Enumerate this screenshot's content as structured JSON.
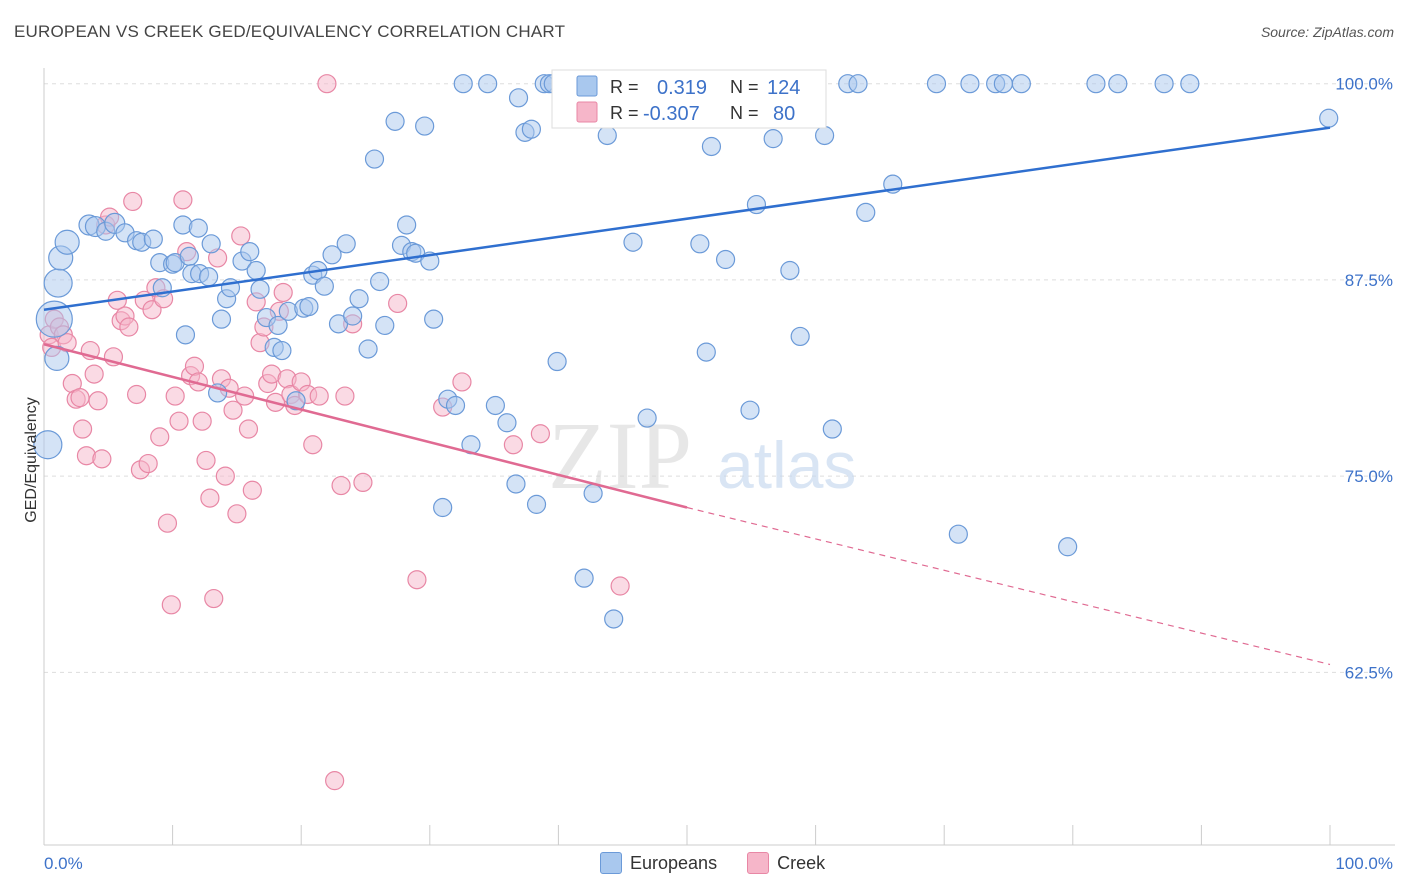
{
  "title": "EUROPEAN VS CREEK GED/EQUIVALENCY CORRELATION CHART",
  "source": "Source: ZipAtlas.com",
  "watermark": {
    "zip": "ZIP",
    "atlas": "atlas"
  },
  "legend": {
    "europeans": {
      "r_label": "R =",
      "r_value": "0.319",
      "n_label": "N =",
      "n_value": "124"
    },
    "creek": {
      "r_label": "R =",
      "r_value": "-0.307",
      "n_label": "N =",
      "n_value": "80"
    }
  },
  "bottom_legend": [
    "Europeans",
    "Creek"
  ],
  "colors": {
    "europeans_fill": "#a9c8ee",
    "europeans_stroke": "#6b9ad8",
    "europeans_line": "#2f6fcf",
    "creek_fill": "#f6b6c9",
    "creek_stroke": "#e887a5",
    "creek_line": "#e06a92",
    "tick": "#3d72c9",
    "grid": "#dddddd"
  },
  "chart_data": {
    "type": "scatter",
    "title": "EUROPEAN VS CREEK GED/EQUIVALENCY CORRELATION CHART",
    "xlabel": "",
    "ylabel": "GED/Equivalency",
    "xlim": [
      0,
      100
    ],
    "ylim": [
      51.5,
      101
    ],
    "x_tick_labels": [
      "0.0%",
      "100.0%"
    ],
    "y_ticks": [
      62.5,
      75.0,
      87.5,
      100.0
    ],
    "y_tick_labels": [
      "62.5%",
      "75.0%",
      "87.5%",
      "100.0%"
    ],
    "grid": true,
    "series": [
      {
        "name": "Europeans",
        "trend": {
          "x": [
            0,
            100
          ],
          "y": [
            85.6,
            97.2
          ],
          "style": "solid"
        },
        "points": [
          [
            0.3,
            77.0,
            14
          ],
          [
            0.8,
            85.0,
            18
          ],
          [
            1.0,
            82.5,
            12
          ],
          [
            1.1,
            87.3,
            14
          ],
          [
            1.3,
            88.9,
            12
          ],
          [
            1.8,
            89.9,
            12
          ],
          [
            3.5,
            91.0,
            10
          ],
          [
            4.0,
            90.9,
            10
          ],
          [
            4.8,
            90.6,
            9
          ],
          [
            5.5,
            91.1,
            10
          ],
          [
            6.3,
            90.5,
            9
          ],
          [
            7.2,
            90.0,
            9
          ],
          [
            7.6,
            89.9,
            9
          ],
          [
            8.5,
            90.1,
            9
          ],
          [
            9.0,
            88.6,
            9
          ],
          [
            9.2,
            87.0,
            9
          ],
          [
            10.0,
            88.5,
            9
          ],
          [
            10.2,
            88.6,
            9
          ],
          [
            10.8,
            91.0,
            9
          ],
          [
            11.3,
            89.0,
            9
          ],
          [
            11.0,
            84.0,
            9
          ],
          [
            11.5,
            87.9,
            9
          ],
          [
            12.1,
            87.9,
            9
          ],
          [
            12.0,
            90.8,
            9
          ],
          [
            12.8,
            87.7,
            9
          ],
          [
            13.0,
            89.8,
            9
          ],
          [
            13.5,
            80.3,
            9
          ],
          [
            13.8,
            85.0,
            9
          ],
          [
            14.2,
            86.3,
            9
          ],
          [
            14.5,
            87.0,
            9
          ],
          [
            15.4,
            88.7,
            9
          ],
          [
            16.0,
            89.3,
            9
          ],
          [
            16.5,
            88.1,
            9
          ],
          [
            16.8,
            86.9,
            9
          ],
          [
            17.3,
            85.1,
            9
          ],
          [
            17.9,
            83.2,
            9
          ],
          [
            18.5,
            83.0,
            9
          ],
          [
            18.2,
            84.6,
            9
          ],
          [
            19.0,
            85.5,
            9
          ],
          [
            19.6,
            79.8,
            9
          ],
          [
            20.2,
            85.7,
            9
          ],
          [
            20.6,
            85.8,
            9
          ],
          [
            20.9,
            87.8,
            9
          ],
          [
            21.3,
            88.1,
            9
          ],
          [
            21.8,
            87.1,
            9
          ],
          [
            22.4,
            89.1,
            9
          ],
          [
            22.9,
            84.7,
            9
          ],
          [
            23.5,
            89.8,
            9
          ],
          [
            24.0,
            85.2,
            9
          ],
          [
            24.5,
            86.3,
            9
          ],
          [
            25.2,
            83.1,
            9
          ],
          [
            25.7,
            95.2,
            9
          ],
          [
            26.1,
            87.4,
            9
          ],
          [
            26.5,
            84.6,
            9
          ],
          [
            27.3,
            97.6,
            9
          ],
          [
            27.8,
            89.7,
            9
          ],
          [
            28.2,
            91.0,
            9
          ],
          [
            28.6,
            89.3,
            9
          ],
          [
            28.9,
            89.2,
            9
          ],
          [
            29.6,
            97.3,
            9
          ],
          [
            30.0,
            88.7,
            9
          ],
          [
            30.3,
            85.0,
            9
          ],
          [
            31.0,
            73.0,
            9
          ],
          [
            31.4,
            79.9,
            9
          ],
          [
            32.0,
            79.5,
            9
          ],
          [
            32.6,
            100.0,
            9
          ],
          [
            33.2,
            77.0,
            9
          ],
          [
            34.5,
            100.0,
            9
          ],
          [
            35.1,
            79.5,
            9
          ],
          [
            36.0,
            78.4,
            9
          ],
          [
            36.7,
            74.5,
            9
          ],
          [
            36.9,
            99.1,
            9
          ],
          [
            37.4,
            96.9,
            9
          ],
          [
            37.9,
            97.1,
            9
          ],
          [
            38.3,
            73.2,
            9
          ],
          [
            38.9,
            100.0,
            9
          ],
          [
            39.3,
            100.0,
            9
          ],
          [
            39.6,
            100.0,
            9
          ],
          [
            39.9,
            82.3,
            9
          ],
          [
            40.6,
            100.0,
            9
          ],
          [
            41.0,
            100.0,
            9
          ],
          [
            41.5,
            100.0,
            9
          ],
          [
            42.0,
            68.5,
            9
          ],
          [
            42.7,
            73.9,
            9
          ],
          [
            43.5,
            100.0,
            9
          ],
          [
            43.8,
            96.7,
            9
          ],
          [
            44.3,
            65.9,
            9
          ],
          [
            45.0,
            100.0,
            9
          ],
          [
            45.8,
            89.9,
            9
          ],
          [
            46.4,
            100.0,
            9
          ],
          [
            46.9,
            78.7,
            9
          ],
          [
            47.5,
            100.0,
            9
          ],
          [
            48.0,
            98.4,
            9
          ],
          [
            49.2,
            100.0,
            9
          ],
          [
            50.4,
            100.0,
            9
          ],
          [
            51.0,
            89.8,
            9
          ],
          [
            51.5,
            82.9,
            9
          ],
          [
            51.9,
            96.0,
            9
          ],
          [
            52.5,
            100.0,
            9
          ],
          [
            53.0,
            88.8,
            9
          ],
          [
            54.2,
            100.0,
            9
          ],
          [
            54.9,
            79.2,
            9
          ],
          [
            55.4,
            92.3,
            9
          ],
          [
            56.0,
            100.0,
            9
          ],
          [
            56.7,
            96.5,
            9
          ],
          [
            57.3,
            100.0,
            9
          ],
          [
            58.0,
            88.1,
            9
          ],
          [
            58.8,
            83.9,
            9
          ],
          [
            60.0,
            100.0,
            9
          ],
          [
            60.7,
            96.7,
            9
          ],
          [
            61.3,
            78.0,
            9
          ],
          [
            62.5,
            100.0,
            9
          ],
          [
            63.3,
            100.0,
            9
          ],
          [
            63.9,
            91.8,
            9
          ],
          [
            66.0,
            93.6,
            9
          ],
          [
            69.4,
            100.0,
            9
          ],
          [
            71.1,
            71.3,
            9
          ],
          [
            72.0,
            100.0,
            9
          ],
          [
            74.0,
            100.0,
            9
          ],
          [
            74.6,
            100.0,
            9
          ],
          [
            76.0,
            100.0,
            9
          ],
          [
            79.6,
            70.5,
            9
          ],
          [
            81.8,
            100.0,
            9
          ],
          [
            83.5,
            100.0,
            9
          ],
          [
            87.1,
            100.0,
            9
          ],
          [
            89.1,
            100.0,
            9
          ],
          [
            99.9,
            97.8,
            9
          ]
        ]
      },
      {
        "name": "Creek",
        "trend": {
          "x": [
            0,
            50,
            100
          ],
          "y": [
            83.4,
            73.0,
            63.0
          ],
          "style": "solid-then-dashed",
          "solid_until": 50
        },
        "points": [
          [
            0.4,
            84.0,
            9
          ],
          [
            0.6,
            83.2,
            9
          ],
          [
            0.8,
            85.0,
            9
          ],
          [
            1.2,
            84.5,
            9
          ],
          [
            1.5,
            84.0,
            9
          ],
          [
            1.8,
            83.5,
            9
          ],
          [
            2.2,
            80.9,
            9
          ],
          [
            2.5,
            79.9,
            9
          ],
          [
            2.8,
            80.0,
            9
          ],
          [
            3.0,
            78.0,
            9
          ],
          [
            3.3,
            76.3,
            9
          ],
          [
            3.6,
            83.0,
            9
          ],
          [
            3.9,
            81.5,
            9
          ],
          [
            4.2,
            79.8,
            9
          ],
          [
            4.5,
            76.1,
            9
          ],
          [
            4.8,
            91.0,
            9
          ],
          [
            5.1,
            91.5,
            9
          ],
          [
            5.4,
            82.6,
            9
          ],
          [
            5.7,
            86.2,
            9
          ],
          [
            6.0,
            84.9,
            9
          ],
          [
            6.3,
            85.2,
            9
          ],
          [
            6.6,
            84.5,
            9
          ],
          [
            6.9,
            92.5,
            9
          ],
          [
            7.2,
            80.2,
            9
          ],
          [
            7.5,
            75.4,
            9
          ],
          [
            7.8,
            86.2,
            9
          ],
          [
            8.1,
            75.8,
            9
          ],
          [
            8.4,
            85.6,
            9
          ],
          [
            8.7,
            87.0,
            9
          ],
          [
            9.0,
            77.5,
            9
          ],
          [
            9.3,
            86.3,
            9
          ],
          [
            9.6,
            72.0,
            9
          ],
          [
            9.9,
            66.8,
            9
          ],
          [
            10.2,
            80.1,
            9
          ],
          [
            10.5,
            78.5,
            9
          ],
          [
            10.8,
            92.6,
            9
          ],
          [
            11.1,
            89.3,
            9
          ],
          [
            11.4,
            81.4,
            9
          ],
          [
            11.7,
            82.0,
            9
          ],
          [
            12.0,
            81.0,
            9
          ],
          [
            12.3,
            78.5,
            9
          ],
          [
            12.6,
            76.0,
            9
          ],
          [
            12.9,
            73.6,
            9
          ],
          [
            13.2,
            67.2,
            9
          ],
          [
            13.5,
            88.9,
            9
          ],
          [
            13.8,
            81.2,
            9
          ],
          [
            14.1,
            75.0,
            9
          ],
          [
            14.4,
            80.6,
            9
          ],
          [
            14.7,
            79.2,
            9
          ],
          [
            15.0,
            72.6,
            9
          ],
          [
            15.3,
            90.3,
            9
          ],
          [
            15.6,
            80.1,
            9
          ],
          [
            15.9,
            78.0,
            9
          ],
          [
            16.2,
            74.1,
            9
          ],
          [
            16.5,
            86.1,
            9
          ],
          [
            16.8,
            83.5,
            9
          ],
          [
            17.1,
            84.5,
            9
          ],
          [
            17.4,
            80.9,
            9
          ],
          [
            17.7,
            81.5,
            9
          ],
          [
            18.0,
            79.7,
            9
          ],
          [
            18.3,
            85.5,
            9
          ],
          [
            18.6,
            86.7,
            9
          ],
          [
            18.9,
            81.2,
            9
          ],
          [
            19.2,
            80.2,
            9
          ],
          [
            19.5,
            79.5,
            9
          ],
          [
            20.0,
            81.0,
            9
          ],
          [
            20.5,
            80.2,
            9
          ],
          [
            20.9,
            77.0,
            9
          ],
          [
            21.4,
            80.1,
            9
          ],
          [
            22.0,
            100.0,
            9
          ],
          [
            22.6,
            55.6,
            9
          ],
          [
            23.1,
            74.4,
            9
          ],
          [
            23.4,
            80.1,
            9
          ],
          [
            24.0,
            84.7,
            9
          ],
          [
            24.8,
            74.6,
            9
          ],
          [
            27.5,
            86.0,
            9
          ],
          [
            29.0,
            68.4,
            9
          ],
          [
            31.0,
            79.4,
            9
          ],
          [
            32.5,
            81.0,
            9
          ],
          [
            36.5,
            77.0,
            9
          ],
          [
            38.6,
            77.7,
            9
          ],
          [
            44.8,
            68.0,
            9
          ]
        ]
      }
    ]
  }
}
